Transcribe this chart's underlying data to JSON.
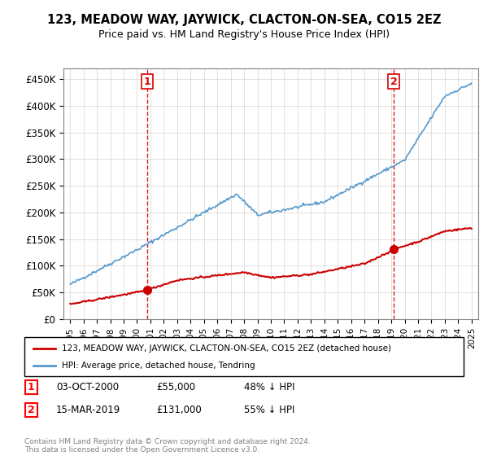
{
  "title": "123, MEADOW WAY, JAYWICK, CLACTON-ON-SEA, CO15 2EZ",
  "subtitle": "Price paid vs. HM Land Registry's House Price Index (HPI)",
  "legend_line1": "123, MEADOW WAY, JAYWICK, CLACTON-ON-SEA, CO15 2EZ (detached house)",
  "legend_line2": "HPI: Average price, detached house, Tendring",
  "footer": "Contains HM Land Registry data © Crown copyright and database right 2024.\nThis data is licensed under the Open Government Licence v3.0.",
  "table_rows": [
    {
      "num": "1",
      "date": "03-OCT-2000",
      "price": "£55,000",
      "note": "48% ↓ HPI"
    },
    {
      "num": "2",
      "date": "15-MAR-2019",
      "price": "£131,000",
      "note": "55% ↓ HPI"
    }
  ],
  "sale1_x": 2000.75,
  "sale1_y": 55000,
  "sale2_x": 2019.2,
  "sale2_y": 131000,
  "red_color": "#cc0000",
  "blue_color": "#5599cc",
  "vline_color": "#dd0000",
  "ylim": [
    0,
    470000
  ],
  "xlim_start": 1994.5,
  "xlim_end": 2025.5,
  "yticks": [
    0,
    50000,
    100000,
    150000,
    200000,
    250000,
    300000,
    350000,
    400000,
    450000
  ],
  "ytick_labels": [
    "£0",
    "£50K",
    "£100K",
    "£150K",
    "£200K",
    "£250K",
    "£300K",
    "£350K",
    "£400K",
    "£450K"
  ],
  "xticks": [
    1995,
    1996,
    1997,
    1998,
    1999,
    2000,
    2001,
    2002,
    2003,
    2004,
    2005,
    2006,
    2007,
    2008,
    2009,
    2010,
    2011,
    2012,
    2013,
    2014,
    2015,
    2016,
    2017,
    2018,
    2019,
    2020,
    2021,
    2022,
    2023,
    2024,
    2025
  ]
}
